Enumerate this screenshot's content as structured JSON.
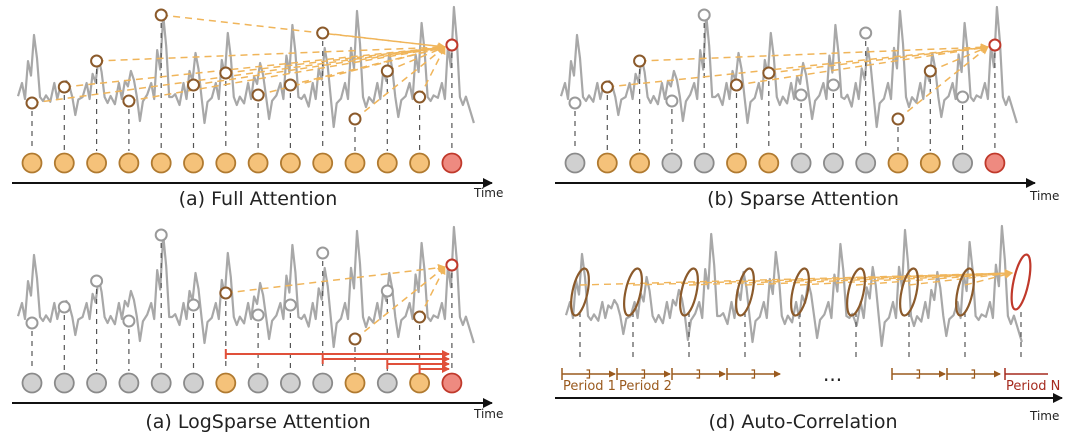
{
  "panels": [
    {
      "id": "full",
      "caption": "(a) Full Attention",
      "time_label": "Time"
    },
    {
      "id": "sparse",
      "caption": "(b) Sparse Attention",
      "time_label": "Time"
    },
    {
      "id": "logsparse",
      "caption": "(a) LogSparse Attention",
      "time_label": "Time"
    },
    {
      "id": "autocorr",
      "caption": "(d) Auto-Correlation",
      "time_label": "Time"
    }
  ],
  "period_labels": {
    "first": "Period 1",
    "second": "Period 2",
    "last": "Period N",
    "ellipsis": "..."
  },
  "token_states": {
    "full": [
      "o",
      "o",
      "o",
      "o",
      "o",
      "o",
      "o",
      "o",
      "o",
      "o",
      "o",
      "o",
      "o",
      "q"
    ],
    "sparse": [
      "g",
      "o",
      "o",
      "g",
      "g",
      "o",
      "o",
      "g",
      "g",
      "g",
      "o",
      "o",
      "g",
      "q"
    ],
    "logsparse": [
      "g",
      "g",
      "g",
      "g",
      "g",
      "g",
      "o",
      "g",
      "g",
      "g",
      "o",
      "g",
      "o",
      "q"
    ]
  },
  "colors": {
    "series": "#a8a8a8",
    "attended": "#f5c27a",
    "attended_border": "#b07a30",
    "inactive": "#d0d0d0",
    "inactive_border": "#8a8a8a",
    "query": "#ee8a80",
    "query_border": "#c0392b",
    "arrow": "#f0b55a",
    "marker": "#8b5a2b",
    "red_arrow": "#e0503a"
  }
}
